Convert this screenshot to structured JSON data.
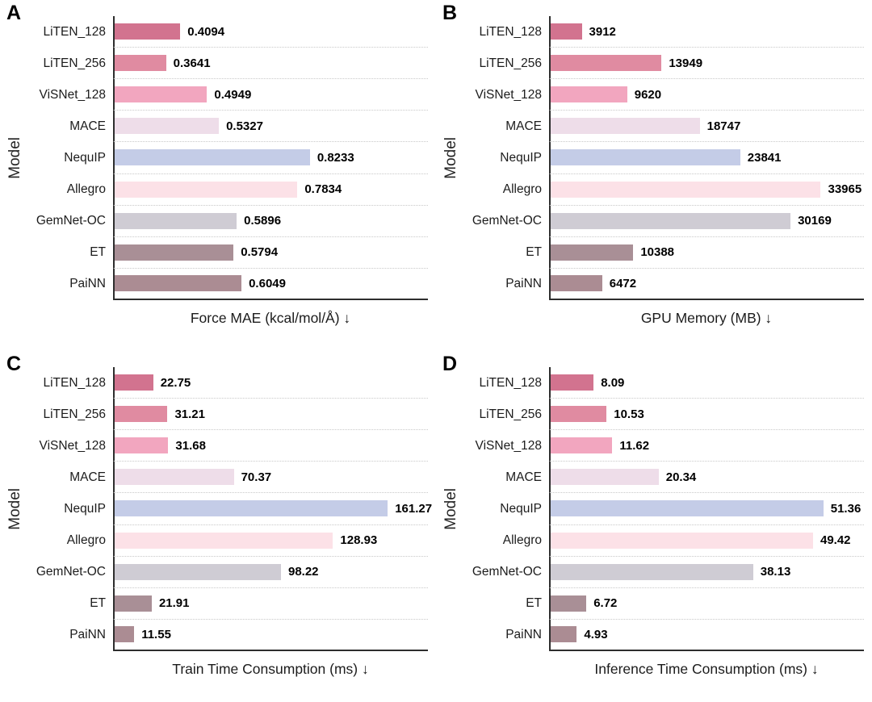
{
  "figure": {
    "ylabel": "Model",
    "models": [
      "LiTEN_128",
      "LiTEN_256",
      "ViSNet_128",
      "MACE",
      "NequIP",
      "Allegro",
      "GemNet-OC",
      "ET",
      "PaiNN"
    ],
    "bar_colors": [
      "#d2738f",
      "#e08ba1",
      "#f2a6bf",
      "#eedde9",
      "#c4cce7",
      "#fce1e7",
      "#cfccd4",
      "#a98f96",
      "#ab8c93"
    ]
  },
  "chart_data": [
    {
      "panel": "A",
      "type": "bar",
      "orientation": "horizontal",
      "xlabel": "Force MAE (kcal/mol/Å) ↓",
      "ylabel": "Model",
      "categories": [
        "LiTEN_128",
        "LiTEN_256",
        "ViSNet_128",
        "MACE",
        "NequIP",
        "Allegro",
        "GemNet-OC",
        "ET",
        "PaiNN"
      ],
      "values": [
        0.4094,
        0.3641,
        0.4949,
        0.5327,
        0.8233,
        0.7834,
        0.5896,
        0.5794,
        0.6049
      ],
      "xlim": [
        0.2,
        1.2
      ],
      "grid": "dotted-between-categories",
      "value_labels_shown": true
    },
    {
      "panel": "B",
      "type": "bar",
      "orientation": "horizontal",
      "xlabel": "GPU Memory (MB) ↓",
      "ylabel": "Model",
      "categories": [
        "LiTEN_128",
        "LiTEN_256",
        "ViSNet_128",
        "MACE",
        "NequIP",
        "Allegro",
        "GemNet-OC",
        "ET",
        "PaiNN"
      ],
      "values": [
        3912,
        13949,
        9620,
        18747,
        23841,
        33965,
        30169,
        10388,
        6472
      ],
      "xlim": [
        0,
        39400
      ],
      "grid": "dotted-between-categories",
      "value_labels_shown": true
    },
    {
      "panel": "C",
      "type": "bar",
      "orientation": "horizontal",
      "xlabel": "Train Time Consumption (ms) ↓",
      "ylabel": "Model",
      "categories": [
        "LiTEN_128",
        "LiTEN_256",
        "ViSNet_128",
        "MACE",
        "NequIP",
        "Allegro",
        "GemNet-OC",
        "ET",
        "PaiNN"
      ],
      "values": [
        22.75,
        31.21,
        31.68,
        70.37,
        161.27,
        128.93,
        98.22,
        21.91,
        11.55
      ],
      "xlim": [
        0,
        185
      ],
      "grid": "dotted-between-categories",
      "value_labels_shown": true
    },
    {
      "panel": "D",
      "type": "bar",
      "orientation": "horizontal",
      "xlabel": "Inference Time Consumption (ms) ↓",
      "ylabel": "Model",
      "categories": [
        "LiTEN_128",
        "LiTEN_256",
        "ViSNet_128",
        "MACE",
        "NequIP",
        "Allegro",
        "GemNet-OC",
        "ET",
        "PaiNN"
      ],
      "values": [
        8.09,
        10.53,
        11.62,
        20.34,
        51.36,
        49.42,
        38.13,
        6.72,
        4.93
      ],
      "xlim": [
        0,
        59
      ],
      "grid": "dotted-between-categories",
      "value_labels_shown": true
    }
  ]
}
